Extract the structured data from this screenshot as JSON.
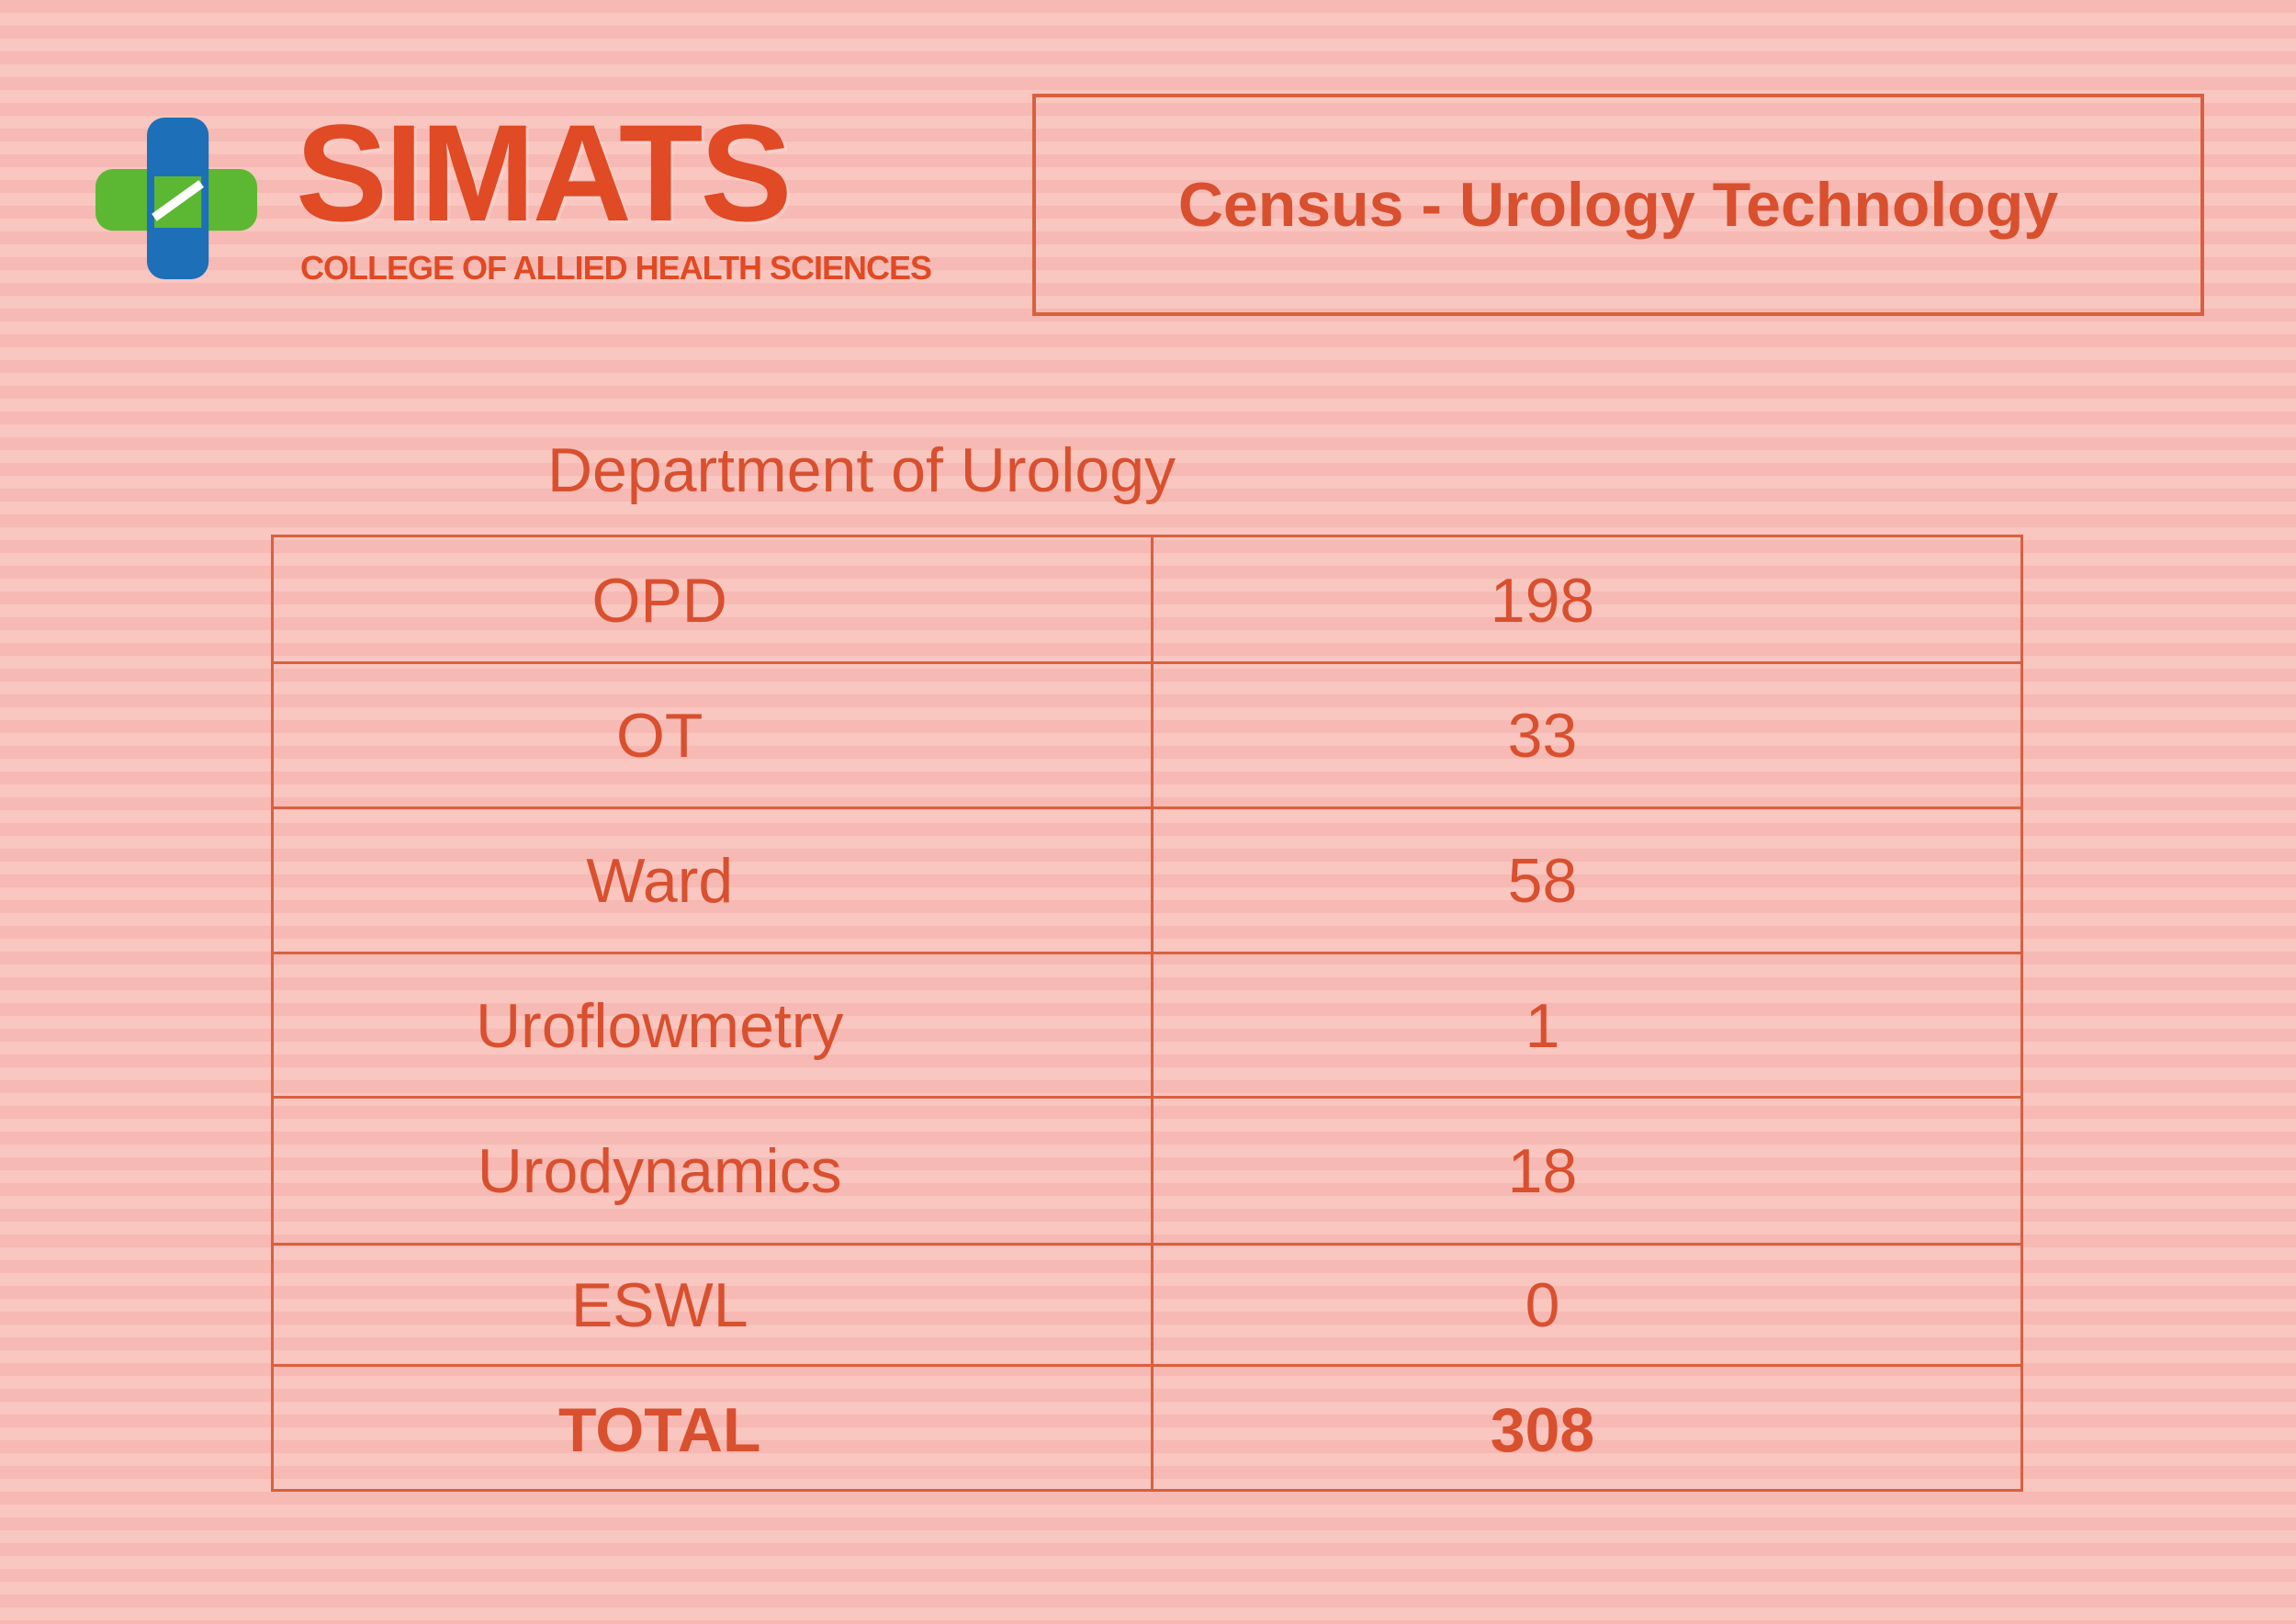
{
  "header": {
    "logo_text": "SIMATS",
    "subtitle": "COLLEGE OF ALLIED HEALTH SCIENCES",
    "title": "Census - Urology Technology"
  },
  "table": {
    "caption": "Department of Urology",
    "rows": [
      [
        "OPD",
        198
      ],
      [
        "OT",
        33
      ],
      [
        "Ward",
        58
      ],
      [
        "Uroflowmetry",
        1
      ],
      [
        "Urodynamics",
        18
      ],
      [
        "ESWL",
        0
      ]
    ],
    "total": [
      "TOTAL",
      308
    ]
  }
}
